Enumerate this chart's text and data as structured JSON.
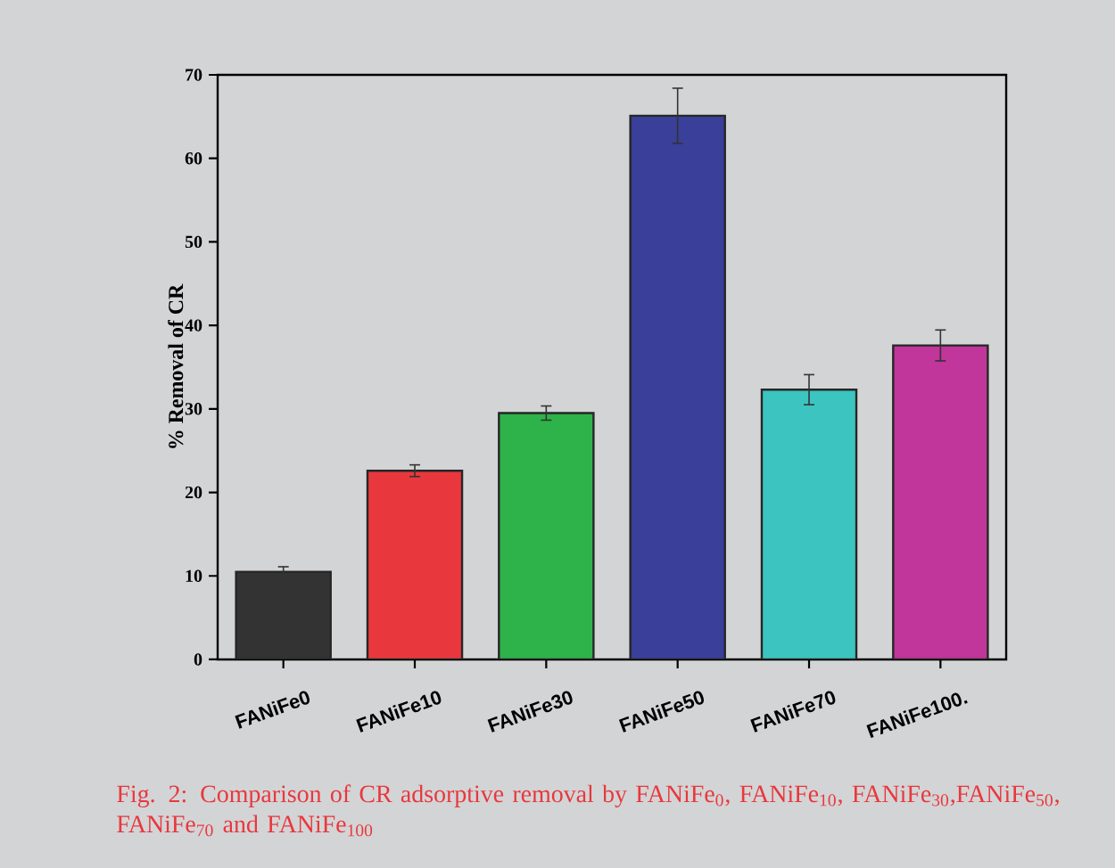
{
  "chart_data": {
    "type": "bar",
    "ylabel": "% Removal of CR",
    "categories": [
      "FANiFe0",
      "FANiFe10",
      "FANiFe30",
      "FANiFe50",
      "FANiFe70",
      "FANiFe100."
    ],
    "values": [
      10.5,
      22.6,
      29.5,
      65.1,
      32.3,
      37.6
    ],
    "errors": [
      0.6,
      0.7,
      0.85,
      3.3,
      1.8,
      1.85
    ],
    "colors": [
      "#333333",
      "#e8383d",
      "#2eb34a",
      "#3a3f9a",
      "#3cc4c0",
      "#c0369a"
    ],
    "ylim": [
      0,
      70
    ],
    "yticks": [
      0,
      10,
      20,
      30,
      40,
      50,
      60,
      70
    ],
    "annotations": [
      "Fig. 2: Comparison of CR adsorptive removal by FANiFe$_{0}$, FANiFe$_{10}$, FANiFe$_{30}$,FANiFe$_{50}$, FANiFe$_{70}$ and FANiFe$_{100}$"
    ]
  }
}
